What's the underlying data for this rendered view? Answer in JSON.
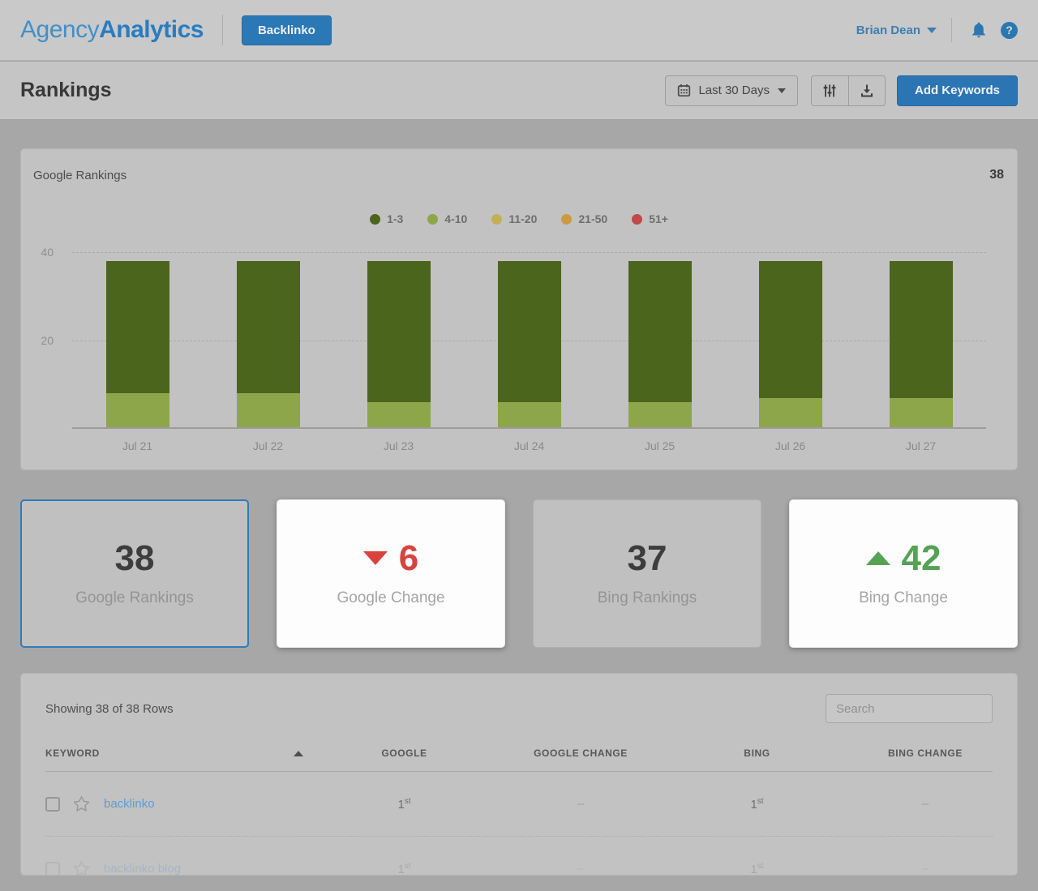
{
  "header": {
    "logo_prefix": "Agency",
    "logo_suffix": "Analytics",
    "client_button": "Backlinko",
    "user_name": "Brian Dean"
  },
  "toolbar": {
    "page_title": "Rankings",
    "date_range": "Last 30 Days",
    "add_keywords": "Add Keywords"
  },
  "chart": {
    "title": "Google Rankings",
    "total": "38"
  },
  "chart_data": {
    "type": "bar",
    "stacked": true,
    "title": "Google Rankings",
    "categories": [
      "Jul 21",
      "Jul 22",
      "Jul 23",
      "Jul 24",
      "Jul 25",
      "Jul 26",
      "Jul 27"
    ],
    "series": [
      {
        "name": "1-3",
        "color": "#4b651d",
        "values": [
          30,
          30,
          32,
          32,
          32,
          31,
          31
        ]
      },
      {
        "name": "4-10",
        "color": "#8da649",
        "values": [
          8,
          8,
          6,
          6,
          6,
          7,
          7
        ]
      },
      {
        "name": "11-20",
        "color": "#c3b054",
        "values": [
          0,
          0,
          0,
          0,
          0,
          0,
          0
        ]
      },
      {
        "name": "21-50",
        "color": "#cc9b3f",
        "values": [
          0,
          0,
          0,
          0,
          0,
          0,
          0
        ]
      },
      {
        "name": "51+",
        "color": "#bf4a47",
        "values": [
          0,
          0,
          0,
          0,
          0,
          0,
          0
        ]
      }
    ],
    "ylim": [
      0,
      40
    ],
    "yticks": [
      40,
      20
    ],
    "grid": "dashed-horizontal",
    "legend_position": "top-center"
  },
  "cards": [
    {
      "value": "38",
      "label": "Google Rankings",
      "selected": true
    },
    {
      "value": "6",
      "label": "Google Change",
      "direction": "down",
      "color": "#d8433e",
      "highlight": true
    },
    {
      "value": "37",
      "label": "Bing Rankings"
    },
    {
      "value": "42",
      "label": "Bing Change",
      "direction": "up",
      "color": "#54a354",
      "highlight": true
    }
  ],
  "table": {
    "summary": "Showing 38 of 38 Rows",
    "search_placeholder": "Search",
    "columns": [
      "KEYWORD",
      "GOOGLE",
      "GOOGLE CHANGE",
      "BING",
      "BING CHANGE"
    ],
    "rows": [
      {
        "keyword": "backlinko",
        "google": "1",
        "google_ord": "st",
        "google_change": "–",
        "bing": "1",
        "bing_ord": "st",
        "bing_change": "–",
        "faded": false
      },
      {
        "keyword": "backlinko blog",
        "google": "1",
        "google_ord": "st",
        "google_change": "–",
        "bing": "1",
        "bing_ord": "st",
        "bing_change": "–",
        "faded": true
      }
    ]
  },
  "colors": {
    "accent_blue": "#2b75b5",
    "selected_card_border": "#2f7cba",
    "negative_red": "#d8433e",
    "positive_green": "#54a354"
  },
  "icons": {
    "calendar-icon": "calendar-grid",
    "filter-icon": "vertical-sliders",
    "download-icon": "arrow-into-tray",
    "bell-icon": "bell",
    "help-icon": "question-circle",
    "caret-down-icon": "triangle-down",
    "sort-asc-icon": "triangle-up",
    "star-icon": "star-outline",
    "checkbox": "empty-square",
    "decrease-icon": "triangle-down",
    "increase-icon": "triangle-up"
  }
}
